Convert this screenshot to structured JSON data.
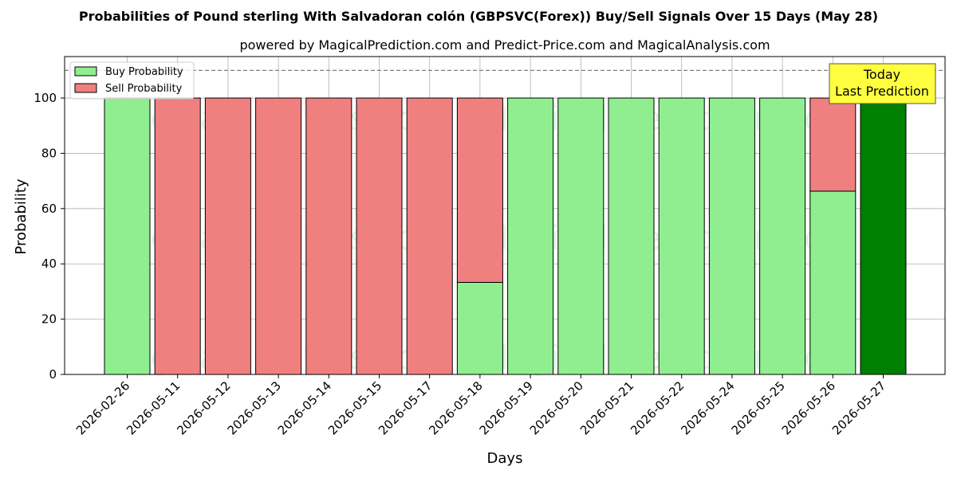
{
  "colors": {
    "buy": "#90ee90",
    "sell": "#f08080",
    "today": "#008000",
    "today_box": "#ffff40",
    "grid": "#b0b0b0",
    "reference_line": "#808080"
  },
  "watermark": {
    "left_text": "MagicalAnalysis.com",
    "right_text": "MagicalPrediction.com"
  },
  "today_annotation": {
    "line1": "Today",
    "line2": "Last Prediction"
  },
  "chart_data": {
    "type": "bar",
    "stacked": true,
    "title": "Probabilities of Pound sterling With Salvadoran colón (GBPSVC(Forex)) Buy/Sell Signals Over 15 Days (May 28)",
    "subtitle": "powered by MagicalPrediction.com and Predict-Price.com and MagicalAnalysis.com",
    "xlabel": "Days",
    "ylabel": "Probability",
    "ylim": [
      0,
      115
    ],
    "yticks": [
      0,
      20,
      40,
      60,
      80,
      100
    ],
    "reference_line": 110,
    "grid": true,
    "legend_position": "top-left",
    "categories": [
      "2026-02-26",
      "2026-05-11",
      "2026-05-12",
      "2026-05-13",
      "2026-05-14",
      "2026-05-15",
      "2026-05-17",
      "2026-05-18",
      "2026-05-19",
      "2026-05-20",
      "2026-05-21",
      "2026-05-22",
      "2026-05-24",
      "2026-05-25",
      "2026-05-26",
      "2026-05-27"
    ],
    "series": [
      {
        "name": "Buy Probability",
        "values": [
          100,
          0,
          0,
          0,
          0,
          0,
          0,
          33.3,
          100,
          100,
          100,
          100,
          100,
          100,
          66.3,
          100
        ]
      },
      {
        "name": "Sell Probability",
        "values": [
          0,
          100,
          100,
          100,
          100,
          100,
          100,
          66.7,
          0,
          0,
          0,
          0,
          0,
          0,
          33.7,
          0
        ]
      }
    ],
    "highlight_last": true
  }
}
